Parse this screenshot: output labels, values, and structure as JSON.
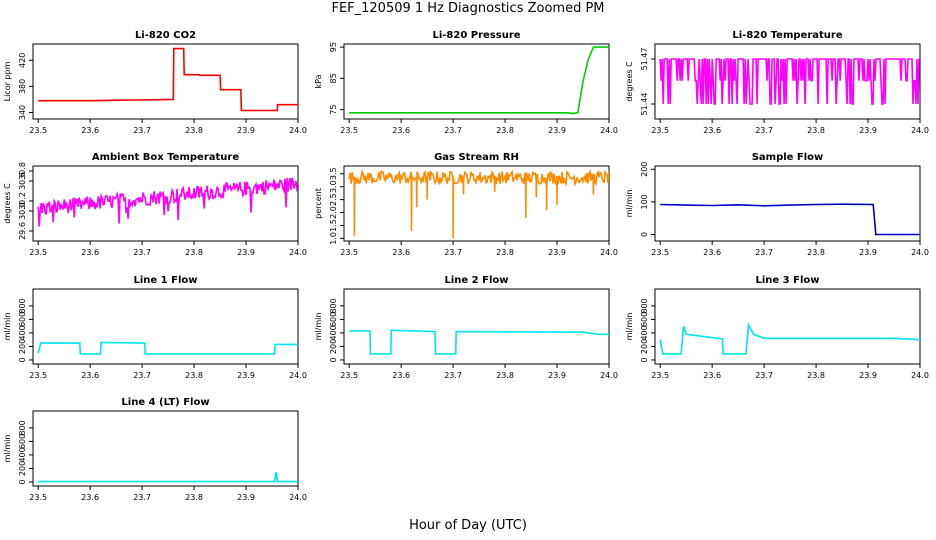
{
  "page": {
    "title": "FEF_120509  1 Hz Diagnostics Zoomed PM",
    "xlabel": "Hour of Day (UTC)"
  },
  "chart_data": [
    {
      "id": "co2",
      "type": "line",
      "title": "Li-820 CO2",
      "ylabel": "Licor ppm",
      "color": "#ff0000",
      "xlim": [
        23.49,
        24.0
      ],
      "ylim": [
        330,
        445
      ],
      "xticks": [
        "23.5",
        "23.6",
        "23.7",
        "23.8",
        "23.9",
        "24.0"
      ],
      "yticks": [
        "340",
        "380",
        "420"
      ],
      "series": [
        {
          "x": [
            23.5,
            23.6,
            23.76,
            23.761,
            23.78,
            23.781,
            23.81,
            23.811,
            23.85,
            23.851,
            23.89,
            23.891,
            23.96,
            23.961,
            24.0
          ],
          "y": [
            358,
            358,
            360,
            438,
            438,
            398,
            398,
            397,
            397,
            375,
            375,
            343,
            343,
            352,
            352
          ]
        }
      ]
    },
    {
      "id": "pressure",
      "type": "line",
      "title": "Li-820 Pressure",
      "ylabel": "kPa",
      "color": "#00cc00",
      "xlim": [
        23.49,
        24.0
      ],
      "ylim": [
        72,
        96
      ],
      "xticks": [
        "23.5",
        "23.6",
        "23.7",
        "23.8",
        "23.9",
        "24.0"
      ],
      "yticks": [
        "75",
        "85",
        "95"
      ],
      "series": [
        {
          "x": [
            23.5,
            23.92,
            23.93,
            23.94,
            23.95,
            23.96,
            23.97,
            24.0
          ],
          "y": [
            74,
            74,
            73.8,
            74,
            84,
            91,
            95,
            95
          ]
        }
      ]
    },
    {
      "id": "licor_temp",
      "type": "line",
      "title": "Li-820 Temperature",
      "ylabel": "degrees C",
      "color": "#ff00ff",
      "xlim": [
        23.49,
        24.0
      ],
      "ylim": [
        51.43,
        51.48
      ],
      "xticks": [
        "23.5",
        "23.6",
        "23.7",
        "23.8",
        "23.9",
        "24.0"
      ],
      "yticks": [
        "51.44",
        "51.47"
      ],
      "series": [
        {
          "x_range": [
            23.5,
            24.0
          ],
          "y_levels": [
            51.44,
            51.4555,
            51.47
          ],
          "pattern": "dense toggling between levels"
        }
      ]
    },
    {
      "id": "box_temp",
      "type": "line",
      "title": "Ambient Box Temperature",
      "ylabel": "degrees C",
      "color": "#ff00ff",
      "xlim": [
        23.49,
        24.0
      ],
      "ylim": [
        29.4,
        30.9
      ],
      "xticks": [
        "23.5",
        "23.6",
        "23.7",
        "23.8",
        "23.9",
        "24.0"
      ],
      "yticks": [
        "29.6",
        "30.0",
        "30.2",
        "30.6",
        "30.8"
      ],
      "series": [
        {
          "x_range": [
            23.5,
            24.0
          ],
          "y_start": 30.05,
          "y_end": 30.55,
          "noise": 0.15
        }
      ]
    },
    {
      "id": "rh",
      "type": "line",
      "title": "Gas Stream RH",
      "ylabel": "percent",
      "color": "#ff8c00",
      "xlim": [
        23.49,
        24.0
      ],
      "ylim": [
        0.9,
        3.8
      ],
      "xticks": [
        "23.5",
        "23.6",
        "23.7",
        "23.8",
        "23.9",
        "24.0"
      ],
      "yticks": [
        "1.0",
        "1.5",
        "2.0",
        "2.5",
        "3.0",
        "3.5"
      ],
      "series": [
        {
          "x_range": [
            23.5,
            24.0
          ],
          "y_base": 3.35,
          "noise": 0.25,
          "dips": [
            [
              23.51,
              1.1
            ],
            [
              23.62,
              1.3
            ],
            [
              23.63,
              2.2
            ],
            [
              23.65,
              2.5
            ],
            [
              23.7,
              1.0
            ],
            [
              23.72,
              2.7
            ],
            [
              23.78,
              2.8
            ],
            [
              23.84,
              1.8
            ],
            [
              23.86,
              2.6
            ],
            [
              23.88,
              2.1
            ],
            [
              23.9,
              2.3
            ],
            [
              23.97,
              2.7
            ]
          ]
        }
      ]
    },
    {
      "id": "sample_flow",
      "type": "line",
      "title": "Sample Flow",
      "ylabel": "ml/min",
      "color": "#0000cc",
      "xlim": [
        23.49,
        24.0
      ],
      "ylim": [
        -20,
        210
      ],
      "xticks": [
        "23.5",
        "23.6",
        "23.7",
        "23.8",
        "23.9",
        "24.0"
      ],
      "yticks": [
        "0",
        "100",
        "200"
      ],
      "series": [
        {
          "x": [
            23.5,
            23.55,
            23.6,
            23.65,
            23.7,
            23.75,
            23.8,
            23.85,
            23.91,
            23.915,
            24.0
          ],
          "y": [
            92,
            90,
            89,
            91,
            88,
            90,
            92,
            93,
            92,
            0,
            0
          ]
        }
      ]
    },
    {
      "id": "line1",
      "type": "line",
      "title": "Line 1 Flow",
      "ylabel": "ml/min",
      "color": "#00e5ee",
      "xlim": [
        23.49,
        24.0
      ],
      "ylim": [
        -60,
        1050
      ],
      "xticks": [
        "23.5",
        "23.6",
        "23.7",
        "23.8",
        "23.9",
        "24.0"
      ],
      "yticks": [
        "0",
        "200",
        "400",
        "600",
        "800"
      ],
      "series": [
        {
          "x": [
            23.5,
            23.505,
            23.58,
            23.581,
            23.62,
            23.621,
            23.705,
            23.706,
            23.955,
            23.956,
            24.0
          ],
          "y": [
            100,
            250,
            250,
            90,
            90,
            260,
            250,
            90,
            90,
            230,
            230
          ]
        }
      ]
    },
    {
      "id": "line2",
      "type": "line",
      "title": "Line 2 Flow",
      "ylabel": "ml/min",
      "color": "#00e5ee",
      "xlim": [
        23.49,
        24.0
      ],
      "ylim": [
        -60,
        1050
      ],
      "xticks": [
        "23.5",
        "23.6",
        "23.7",
        "23.8",
        "23.9",
        "24.0"
      ],
      "yticks": [
        "0",
        "200",
        "400",
        "600",
        "800"
      ],
      "series": [
        {
          "x": [
            23.5,
            23.54,
            23.541,
            23.58,
            23.581,
            23.665,
            23.666,
            23.705,
            23.706,
            23.95,
            23.98,
            24.0
          ],
          "y": [
            430,
            430,
            90,
            90,
            440,
            420,
            90,
            90,
            420,
            410,
            380,
            380
          ]
        }
      ]
    },
    {
      "id": "line3",
      "type": "line",
      "title": "Line 3 Flow",
      "ylabel": "ml/min",
      "color": "#00e5ee",
      "xlim": [
        23.49,
        24.0
      ],
      "ylim": [
        -60,
        1050
      ],
      "xticks": [
        "23.5",
        "23.6",
        "23.7",
        "23.8",
        "23.9",
        "24.0"
      ],
      "yticks": [
        "0",
        "200",
        "400",
        "600",
        "800"
      ],
      "series": [
        {
          "x": [
            23.5,
            23.505,
            23.54,
            23.545,
            23.55,
            23.6,
            23.62,
            23.621,
            23.665,
            23.67,
            23.68,
            23.7,
            23.95,
            24.0
          ],
          "y": [
            300,
            90,
            90,
            500,
            380,
            330,
            310,
            90,
            90,
            520,
            380,
            320,
            320,
            300
          ]
        }
      ]
    },
    {
      "id": "line4",
      "type": "line",
      "title": "Line 4 (LT) Flow",
      "ylabel": "ml/min",
      "color": "#00e5ee",
      "xlim": [
        23.49,
        24.0
      ],
      "ylim": [
        -60,
        1050
      ],
      "xticks": [
        "23.5",
        "23.6",
        "23.7",
        "23.8",
        "23.9",
        "24.0"
      ],
      "yticks": [
        "0",
        "200",
        "400",
        "600",
        "800"
      ],
      "series": [
        {
          "x": [
            23.5,
            23.955,
            23.957,
            23.959,
            23.96,
            24.0
          ],
          "y": [
            5,
            5,
            130,
            130,
            5,
            5
          ]
        }
      ]
    }
  ]
}
